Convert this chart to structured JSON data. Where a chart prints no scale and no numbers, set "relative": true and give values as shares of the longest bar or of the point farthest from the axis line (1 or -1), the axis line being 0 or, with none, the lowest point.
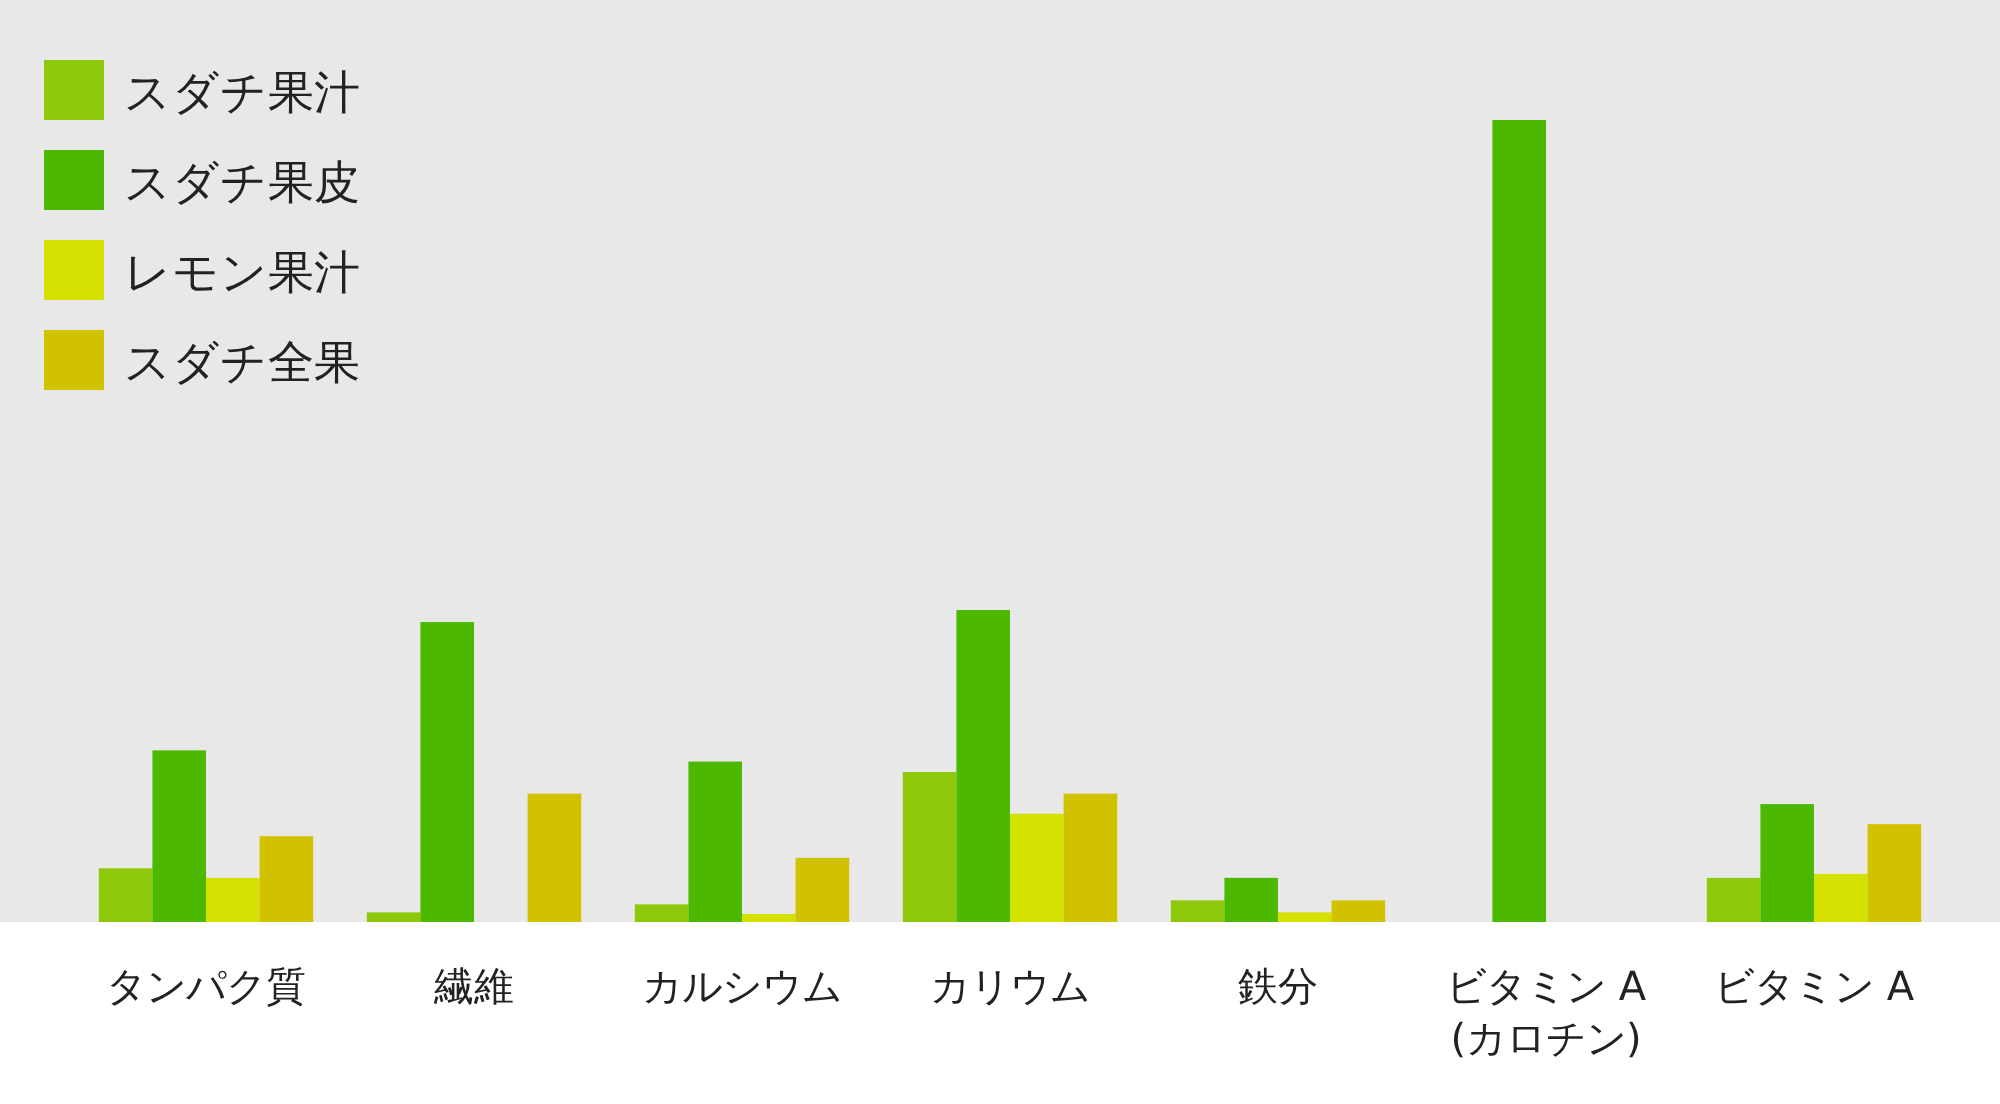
{
  "chart_data": {
    "type": "bar",
    "relative": true,
    "legend": "top left",
    "categories": [
      "タンパク質",
      "繊維",
      "カルシウム",
      "カリウム",
      "鉄分",
      "ビタミン A\n(カロチン)",
      "ビタミン A"
    ],
    "series": [
      {
        "name": "スダチ果汁",
        "color": "#8dc90a",
        "values": [
          0.067,
          0.012,
          0.022,
          0.187,
          0.027,
          null,
          0.055
        ]
      },
      {
        "name": "スダチ果皮",
        "color": "#4db800",
        "values": [
          0.214,
          0.374,
          0.2,
          0.389,
          0.055,
          1,
          0.147
        ]
      },
      {
        "name": "レモン果汁",
        "color": "#d4e000",
        "values": [
          0.055,
          null,
          0.01,
          0.135,
          0.012,
          null,
          0.06
        ]
      },
      {
        "name": "スダチ全果",
        "color": "#d1c200",
        "values": [
          0.107,
          0.16,
          0.08,
          0.16,
          0.027,
          null,
          0.122
        ]
      }
    ]
  }
}
